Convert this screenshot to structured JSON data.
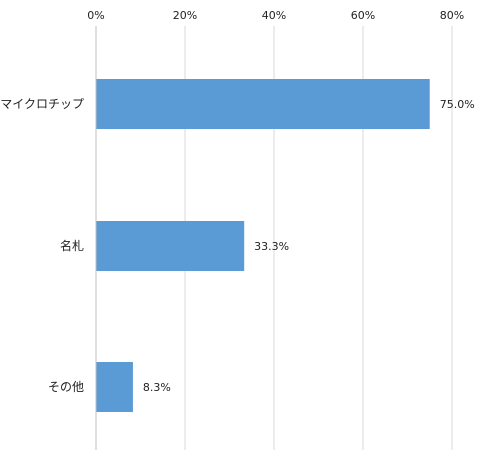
{
  "chart_data": {
    "type": "bar",
    "orientation": "horizontal",
    "categories": [
      "マイクロチップ",
      "名札",
      "その他"
    ],
    "values": [
      75.0,
      33.3,
      8.3
    ],
    "data_labels": [
      "75.0%",
      "33.3%",
      "8.3%"
    ],
    "x_ticks": [
      "0%",
      "20%",
      "40%",
      "60%",
      "80%"
    ],
    "xlim": [
      0,
      80
    ],
    "x_axis_position": "top",
    "grid": true,
    "legend": "none",
    "bar_color": "#5b9bd5"
  }
}
